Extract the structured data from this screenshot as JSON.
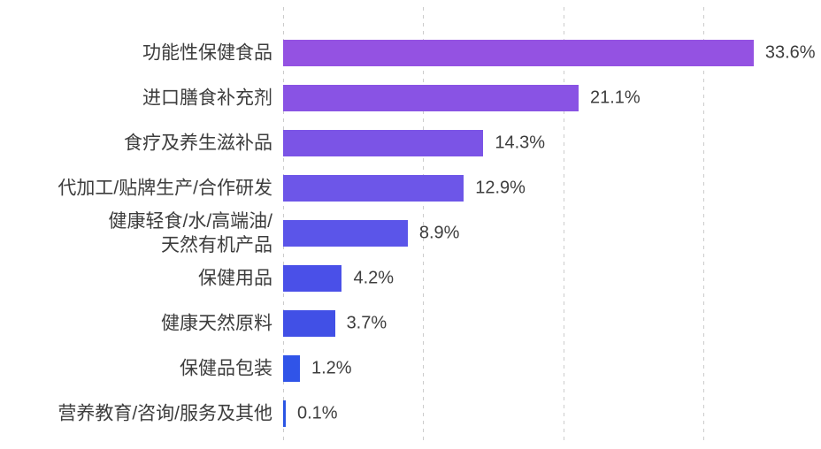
{
  "chart_data": {
    "type": "bar",
    "orientation": "horizontal",
    "title": "",
    "xlabel": "",
    "ylabel": "",
    "categories": [
      "功能性保健食品",
      "进口膳食补充剂",
      "食疗及养生滋补品",
      "代加工/贴牌生产/合作研发",
      "健康轻食/水/高端油/\n天然有机产品",
      "保健用品",
      "健康天然原料",
      "保健品包装",
      "营养教育/咨询/服务及其他"
    ],
    "values": [
      33.6,
      21.1,
      14.3,
      12.9,
      8.9,
      4.2,
      3.7,
      1.2,
      0.1
    ],
    "value_labels": [
      "33.6%",
      "21.1%",
      "14.3%",
      "12.9%",
      "8.9%",
      "4.2%",
      "3.7%",
      "1.2%",
      "0.1%"
    ],
    "bar_colors": [
      "#9452E2",
      "#8953E4",
      "#7B54E6",
      "#6D56E8",
      "#5B55E9",
      "#4A50E8",
      "#4150E6",
      "#3054E8",
      "#2B55E4"
    ],
    "xlim": [
      0,
      38.4
    ],
    "gridlines_percent": [
      0,
      10,
      20,
      30
    ],
    "grid_style": "dashed",
    "grid_color": "#CCCCCC",
    "text_color": "#3D3D3D",
    "background_color": "#FFFFFF",
    "legend": "none"
  }
}
